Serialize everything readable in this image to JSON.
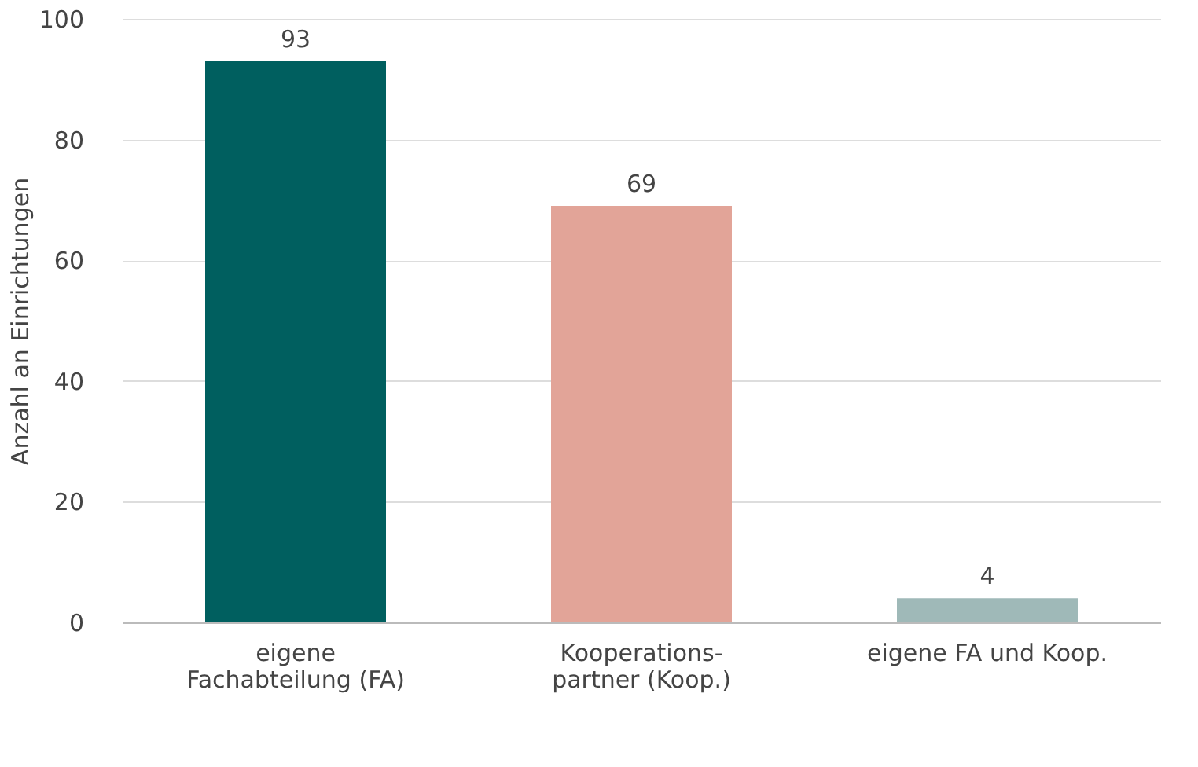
{
  "chart_data": {
    "type": "bar",
    "ylabel": "Anzahl an Einrichtungen",
    "categories": [
      "eigene\nFachabteilung (FA)",
      "Kooperations-\npartner (Koop.)",
      "eigene FA und Koop."
    ],
    "values": [
      93,
      69,
      4
    ],
    "colors": [
      "#005f5f",
      "#e2a498",
      "#9fb9b8"
    ],
    "ylim": [
      0,
      100
    ],
    "yticks": [
      0,
      20,
      40,
      60,
      80,
      100
    ],
    "grid": "y",
    "data_labels": true
  }
}
